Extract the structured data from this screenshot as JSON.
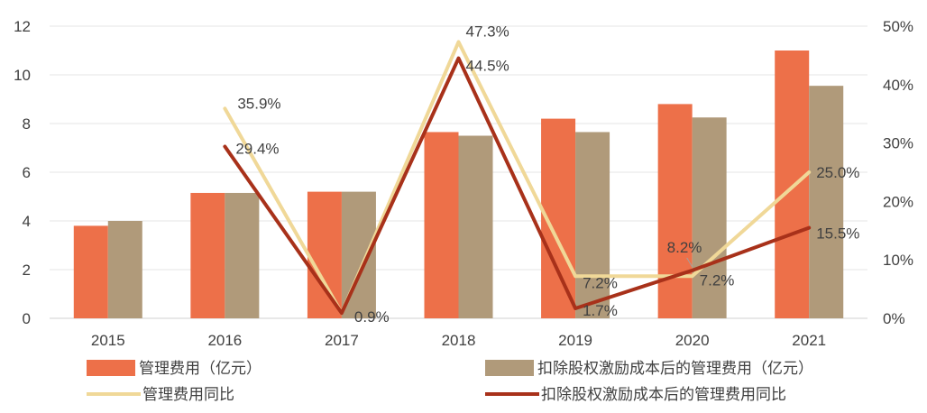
{
  "chart_data": {
    "type": "bar+line",
    "categories": [
      "2015",
      "2016",
      "2017",
      "2018",
      "2019",
      "2020",
      "2021"
    ],
    "bar_series": [
      {
        "name": "管理费用（亿元）",
        "color": "#ED7049",
        "values": [
          3.8,
          5.15,
          5.2,
          7.65,
          8.2,
          8.8,
          11.0
        ]
      },
      {
        "name": "扣除股权激励成本后的管理费用（亿元）",
        "color": "#B09A7A",
        "values": [
          4.0,
          5.15,
          5.2,
          7.5,
          7.65,
          8.25,
          9.55
        ]
      }
    ],
    "line_series": [
      {
        "name": "管理费用同比",
        "color": "#F0D898",
        "values": [
          null,
          35.9,
          0.9,
          47.3,
          7.2,
          7.2,
          25.0
        ],
        "labels": [
          "",
          "35.9%",
          "0.9%",
          "47.3%",
          "7.2%",
          "7.2%",
          "25.0%"
        ]
      },
      {
        "name": "扣除股权激励成本后的管理费用同比",
        "color": "#A8311A",
        "values": [
          null,
          29.4,
          0.9,
          44.5,
          1.7,
          8.2,
          15.5
        ],
        "labels": [
          "",
          "29.4%",
          "",
          "44.5%",
          "1.7%",
          "8.2%",
          "15.5%"
        ]
      }
    ],
    "y_left": {
      "min": 0,
      "max": 12,
      "ticks": [
        "0",
        "2",
        "4",
        "6",
        "8",
        "10",
        "12"
      ]
    },
    "y_right": {
      "min": 0,
      "max": 50,
      "ticks": [
        "0%",
        "10%",
        "20%",
        "30%",
        "40%",
        "50%"
      ]
    },
    "grid": true,
    "legend_position": "bottom",
    "title": "",
    "xlabel": "",
    "ylabel": ""
  }
}
